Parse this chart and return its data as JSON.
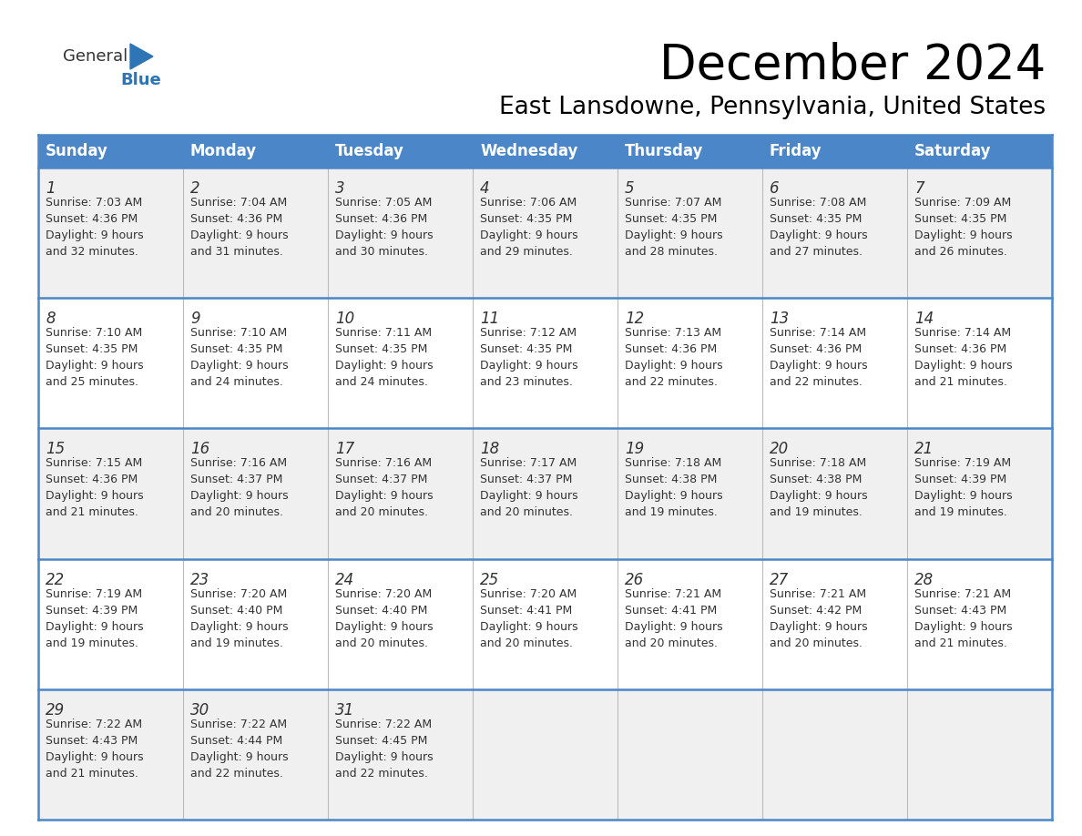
{
  "title": "December 2024",
  "subtitle": "East Lansdowne, Pennsylvania, United States",
  "header_color": "#4a86c8",
  "header_text_color": "#FFFFFF",
  "cell_bg_even": "#F0F0F0",
  "cell_bg_odd": "#FFFFFF",
  "text_color": "#333333",
  "border_color": "#4a86c8",
  "div_color": "#BBBBBB",
  "day_names": [
    "Sunday",
    "Monday",
    "Tuesday",
    "Wednesday",
    "Thursday",
    "Friday",
    "Saturday"
  ],
  "weeks": [
    [
      {
        "day": 1,
        "sunrise": "7:03 AM",
        "sunset": "4:36 PM",
        "daylight_mins": "32"
      },
      {
        "day": 2,
        "sunrise": "7:04 AM",
        "sunset": "4:36 PM",
        "daylight_mins": "31"
      },
      {
        "day": 3,
        "sunrise": "7:05 AM",
        "sunset": "4:36 PM",
        "daylight_mins": "30"
      },
      {
        "day": 4,
        "sunrise": "7:06 AM",
        "sunset": "4:35 PM",
        "daylight_mins": "29"
      },
      {
        "day": 5,
        "sunrise": "7:07 AM",
        "sunset": "4:35 PM",
        "daylight_mins": "28"
      },
      {
        "day": 6,
        "sunrise": "7:08 AM",
        "sunset": "4:35 PM",
        "daylight_mins": "27"
      },
      {
        "day": 7,
        "sunrise": "7:09 AM",
        "sunset": "4:35 PM",
        "daylight_mins": "26"
      }
    ],
    [
      {
        "day": 8,
        "sunrise": "7:10 AM",
        "sunset": "4:35 PM",
        "daylight_mins": "25"
      },
      {
        "day": 9,
        "sunrise": "7:10 AM",
        "sunset": "4:35 PM",
        "daylight_mins": "24"
      },
      {
        "day": 10,
        "sunrise": "7:11 AM",
        "sunset": "4:35 PM",
        "daylight_mins": "24"
      },
      {
        "day": 11,
        "sunrise": "7:12 AM",
        "sunset": "4:35 PM",
        "daylight_mins": "23"
      },
      {
        "day": 12,
        "sunrise": "7:13 AM",
        "sunset": "4:36 PM",
        "daylight_mins": "22"
      },
      {
        "day": 13,
        "sunrise": "7:14 AM",
        "sunset": "4:36 PM",
        "daylight_mins": "22"
      },
      {
        "day": 14,
        "sunrise": "7:14 AM",
        "sunset": "4:36 PM",
        "daylight_mins": "21"
      }
    ],
    [
      {
        "day": 15,
        "sunrise": "7:15 AM",
        "sunset": "4:36 PM",
        "daylight_mins": "21"
      },
      {
        "day": 16,
        "sunrise": "7:16 AM",
        "sunset": "4:37 PM",
        "daylight_mins": "20"
      },
      {
        "day": 17,
        "sunrise": "7:16 AM",
        "sunset": "4:37 PM",
        "daylight_mins": "20"
      },
      {
        "day": 18,
        "sunrise": "7:17 AM",
        "sunset": "4:37 PM",
        "daylight_mins": "20"
      },
      {
        "day": 19,
        "sunrise": "7:18 AM",
        "sunset": "4:38 PM",
        "daylight_mins": "19"
      },
      {
        "day": 20,
        "sunrise": "7:18 AM",
        "sunset": "4:38 PM",
        "daylight_mins": "19"
      },
      {
        "day": 21,
        "sunrise": "7:19 AM",
        "sunset": "4:39 PM",
        "daylight_mins": "19"
      }
    ],
    [
      {
        "day": 22,
        "sunrise": "7:19 AM",
        "sunset": "4:39 PM",
        "daylight_mins": "19"
      },
      {
        "day": 23,
        "sunrise": "7:20 AM",
        "sunset": "4:40 PM",
        "daylight_mins": "19"
      },
      {
        "day": 24,
        "sunrise": "7:20 AM",
        "sunset": "4:40 PM",
        "daylight_mins": "20"
      },
      {
        "day": 25,
        "sunrise": "7:20 AM",
        "sunset": "4:41 PM",
        "daylight_mins": "20"
      },
      {
        "day": 26,
        "sunrise": "7:21 AM",
        "sunset": "4:41 PM",
        "daylight_mins": "20"
      },
      {
        "day": 27,
        "sunrise": "7:21 AM",
        "sunset": "4:42 PM",
        "daylight_mins": "20"
      },
      {
        "day": 28,
        "sunrise": "7:21 AM",
        "sunset": "4:43 PM",
        "daylight_mins": "21"
      }
    ],
    [
      {
        "day": 29,
        "sunrise": "7:22 AM",
        "sunset": "4:43 PM",
        "daylight_mins": "21"
      },
      {
        "day": 30,
        "sunrise": "7:22 AM",
        "sunset": "4:44 PM",
        "daylight_mins": "22"
      },
      {
        "day": 31,
        "sunrise": "7:22 AM",
        "sunset": "4:45 PM",
        "daylight_mins": "22"
      },
      null,
      null,
      null,
      null
    ]
  ],
  "title_fontsize": 38,
  "subtitle_fontsize": 19,
  "header_fontsize": 12,
  "day_num_fontsize": 12,
  "cell_text_fontsize": 9
}
